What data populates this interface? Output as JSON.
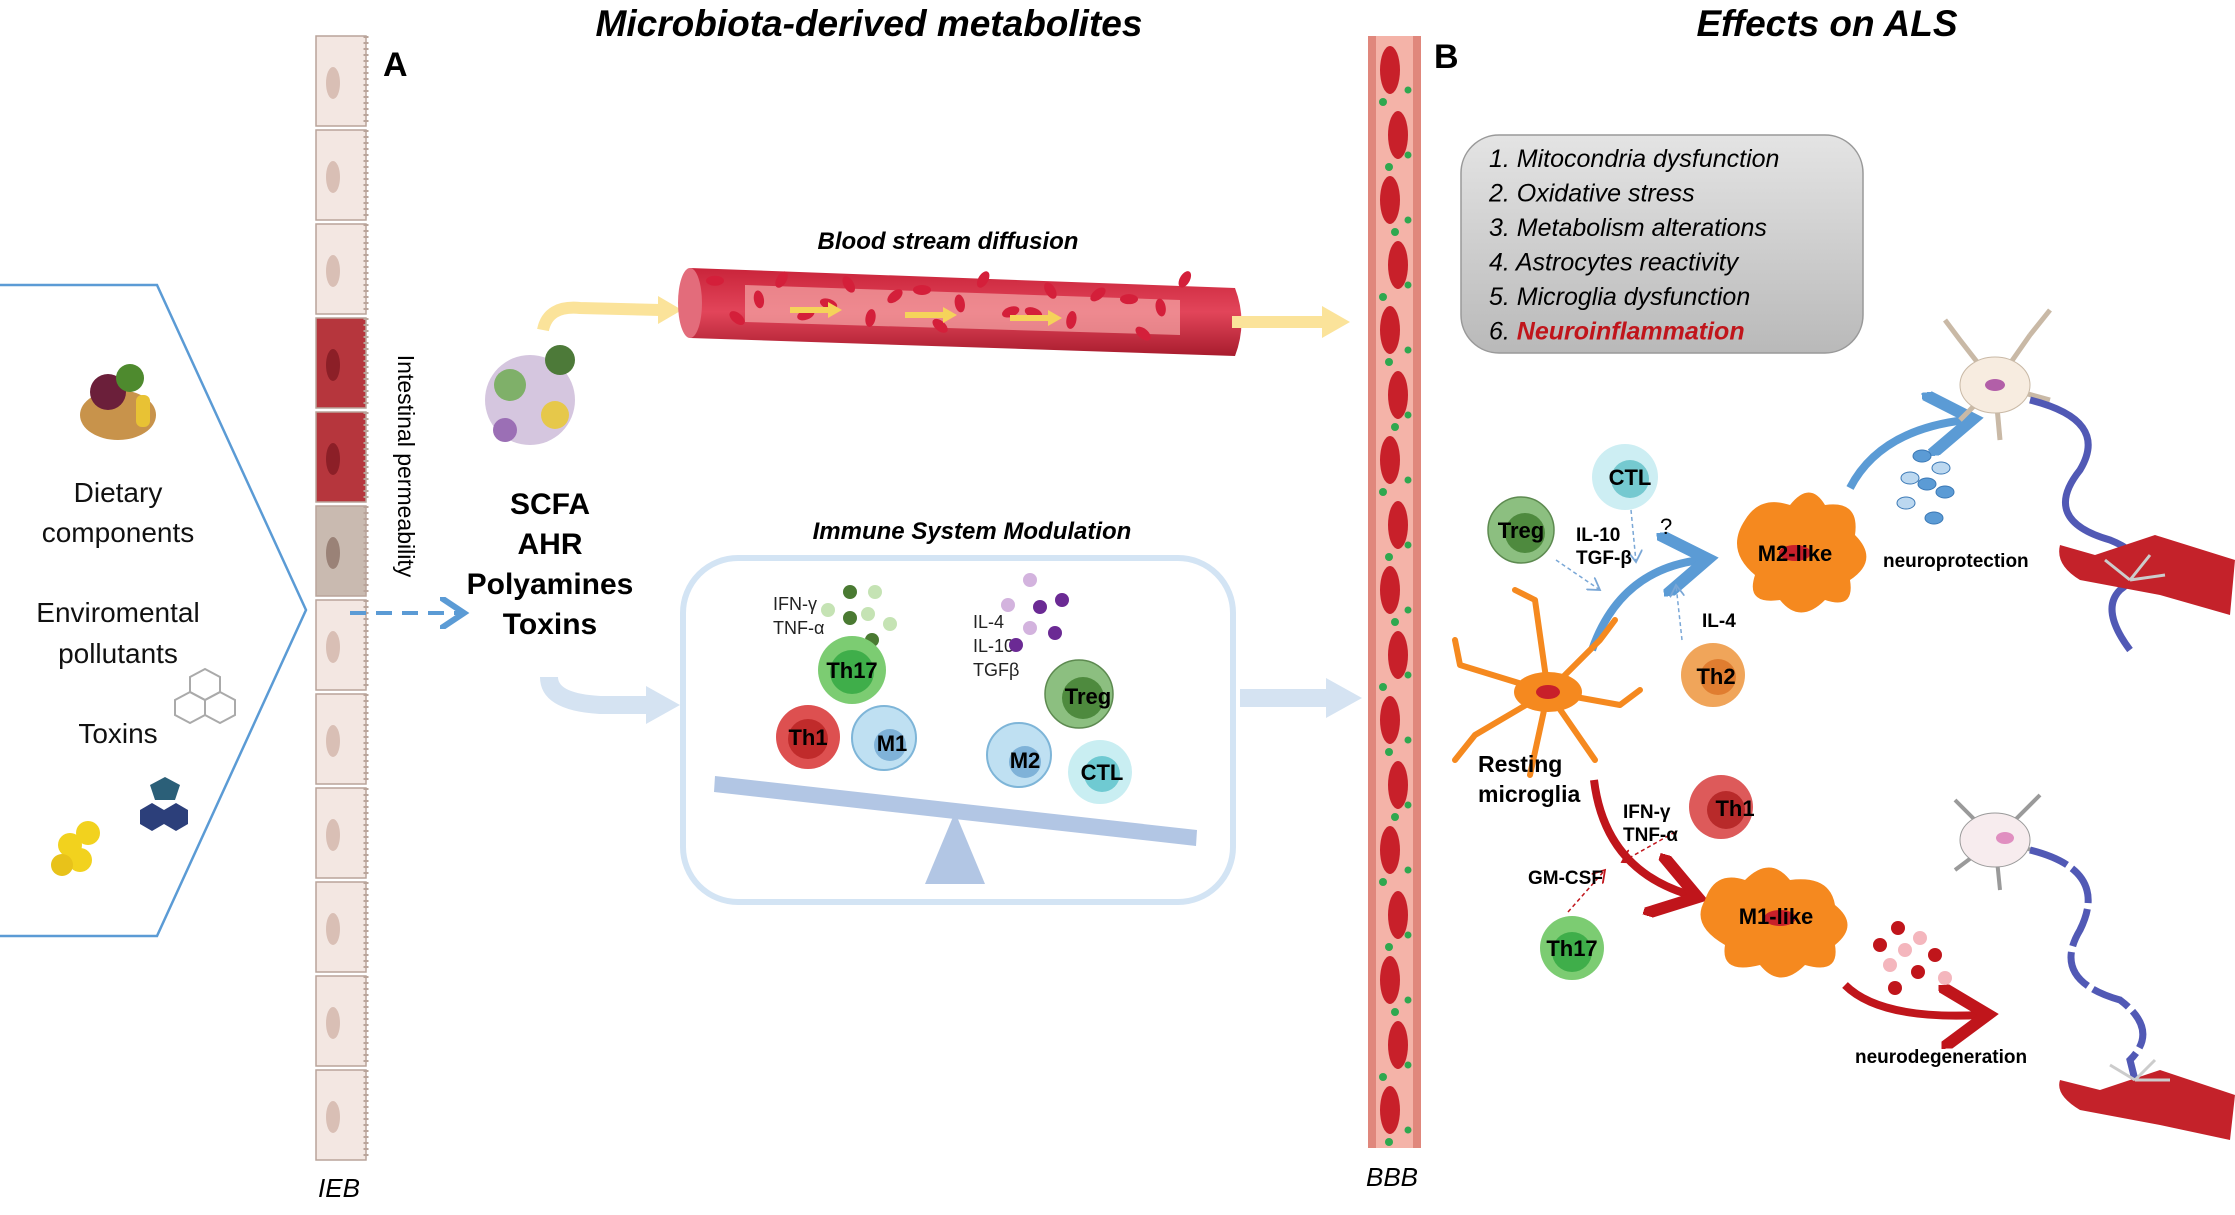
{
  "titles": {
    "left": "Microbiota-derived metabolites",
    "right": "Effects on ALS",
    "panel_a": "A",
    "panel_b": "B"
  },
  "barriers": {
    "ieb": "IEB",
    "bbb": "BBB",
    "intestinal_permeability": "Intestinal permeability"
  },
  "sources": {
    "dietary_line1": "Dietary",
    "dietary_line2": "components",
    "pollutants_line1": "Enviromental",
    "pollutants_line2": "pollutants",
    "toxins": "Toxins"
  },
  "metabolites": [
    "SCFA",
    "AHR",
    "Polyamines",
    "Toxins"
  ],
  "blood_stream": {
    "label": "Blood stream diffusion"
  },
  "immune": {
    "label": "Immune System Modulation",
    "pro_cytokines": [
      "IFN-γ",
      "TNF-α"
    ],
    "anti_cytokines": [
      "IL-4",
      "IL-10",
      "TGFβ"
    ],
    "cells": {
      "th17": "Th17",
      "th1": "Th1",
      "m1": "M1",
      "treg": "Treg",
      "m2": "M2",
      "ctl": "CTL"
    }
  },
  "effects": [
    {
      "num": "1.",
      "text": "Mitocondria dysfunction"
    },
    {
      "num": "2.",
      "text": "Oxidative stress"
    },
    {
      "num": "3.",
      "text": "Metabolism alterations"
    },
    {
      "num": "4.",
      "text": "Astrocytes reactivity"
    },
    {
      "num": "5.",
      "text": "Microglia dysfunction"
    },
    {
      "num": "6.",
      "text": "Neuroinflammation"
    }
  ],
  "microglia": {
    "treg": "Treg",
    "ctl": "CTL",
    "il10": "IL-10",
    "tgfb": "TGF-β",
    "question": "?",
    "m2_like": "M2-like",
    "neuroprotection": "neuroprotection",
    "il4": "IL-4",
    "th2": "Th2",
    "resting_line1": "Resting",
    "resting_line2": "microglia",
    "th1": "Th1",
    "ifng": "IFN-γ",
    "tnfa": "TNF-α",
    "gmcsf": "GM-CSF",
    "th17": "Th17",
    "m1_like": "M1-like",
    "neurodegeneration": "neurodegeneration"
  },
  "colors": {
    "highlight_red": "#c0151b",
    "blue_arrow": "#5b9bd5",
    "red_arrow": "#c0151b",
    "microglia_orange": "#f5891f",
    "box_border": "#bcd6ee",
    "panel_border": "#5b9bd5"
  }
}
